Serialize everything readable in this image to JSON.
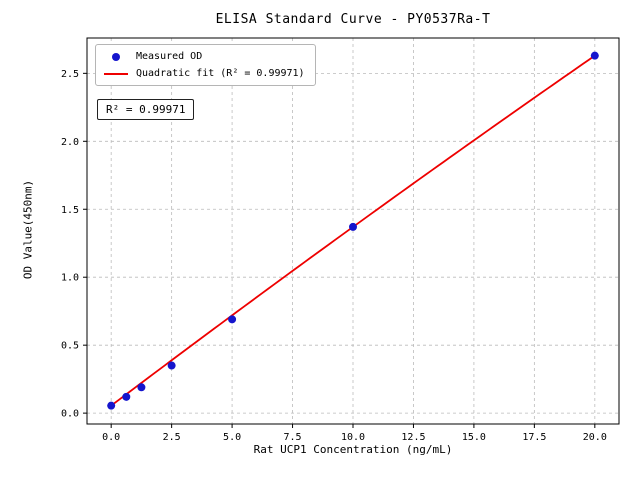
{
  "chart_data": {
    "type": "scatter",
    "title": "ELISA Standard Curve - PY0537Ra-T",
    "xlabel": "Rat UCP1 Concentration (ng/mL)",
    "ylabel": "OD Value(450nm)",
    "xlim": [
      -1,
      21
    ],
    "ylim": [
      -0.08,
      2.76
    ],
    "xticks": [
      0.0,
      2.5,
      5.0,
      7.5,
      10.0,
      12.5,
      15.0,
      17.5,
      20.0
    ],
    "xtick_labels": [
      "0.0",
      "2.5",
      "5.0",
      "7.5",
      "10.0",
      "12.5",
      "15.0",
      "17.5",
      "20.0"
    ],
    "yticks": [
      0.0,
      0.5,
      1.0,
      1.5,
      2.0,
      2.5
    ],
    "ytick_labels": [
      "0.0",
      "0.5",
      "1.0",
      "1.5",
      "2.0",
      "2.5"
    ],
    "grid": true,
    "grid_style": {
      "color": "#bbbbbb",
      "dash": "3,3"
    },
    "annotation": "R² = 0.99971",
    "legend": {
      "position": "upper-left",
      "entries": [
        {
          "label": "Measured OD",
          "marker": "dot",
          "color": "#1515cd"
        },
        {
          "label": "Quadratic fit (R² = 0.99971)",
          "marker": "line",
          "color": "#ee0000"
        }
      ]
    },
    "series": [
      {
        "name": "Measured OD",
        "type": "scatter",
        "color": "#1515cd",
        "points": [
          [
            0,
            0.055
          ],
          [
            0.625,
            0.12
          ],
          [
            1.25,
            0.19
          ],
          [
            2.5,
            0.35
          ],
          [
            5,
            0.69
          ],
          [
            10,
            1.37
          ],
          [
            20,
            2.63
          ]
        ]
      },
      {
        "name": "Quadratic fit",
        "type": "line",
        "color": "#ee0000",
        "r_squared": 0.99971,
        "fit_coefficients": {
          "a": -0.000275,
          "b": 0.13425,
          "c": 0.055
        },
        "x_range": [
          0,
          20
        ]
      }
    ]
  }
}
